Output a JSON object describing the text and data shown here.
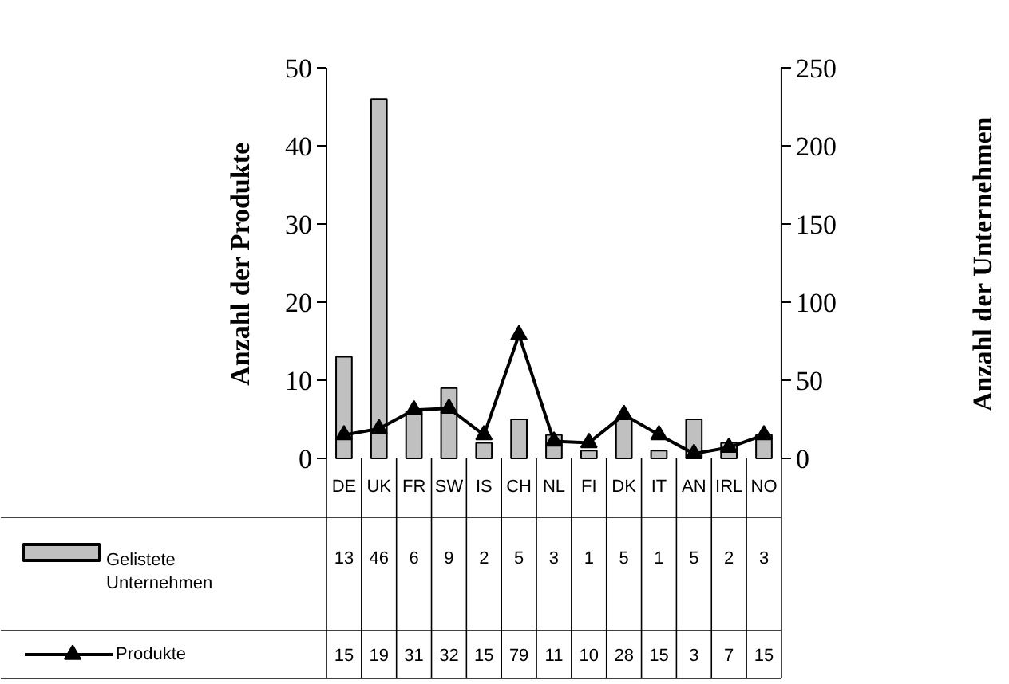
{
  "chart_data": {
    "type": "bar",
    "categories": [
      "DE",
      "UK",
      "FR",
      "SW",
      "IS",
      "CH",
      "NL",
      "FI",
      "DK",
      "IT",
      "AN",
      "IRL",
      "NO"
    ],
    "ylabel": "Anzahl der Produkte",
    "y2label": "Anzahl der Unternehmen",
    "ylim": [
      0,
      50
    ],
    "yticks": [
      0,
      10,
      20,
      30,
      40,
      50
    ],
    "y2lim": [
      0,
      250
    ],
    "y2ticks": [
      0,
      50,
      100,
      150,
      200,
      250
    ],
    "grid": false,
    "legend": "bottom",
    "data_labels": true,
    "marker": "triangle",
    "series": [
      {
        "name": "Gelistete Unternehmen",
        "color": "#c0c0c0",
        "values": [
          13,
          46,
          6,
          9,
          2,
          5,
          3,
          1,
          5,
          1,
          5,
          2,
          3
        ]
      },
      {
        "name": "Produkte",
        "type": "line",
        "axis": "y2",
        "color": "#000000",
        "values": [
          15,
          19,
          31,
          32,
          15,
          79,
          11,
          10,
          28,
          15,
          3,
          7,
          15
        ]
      }
    ]
  }
}
